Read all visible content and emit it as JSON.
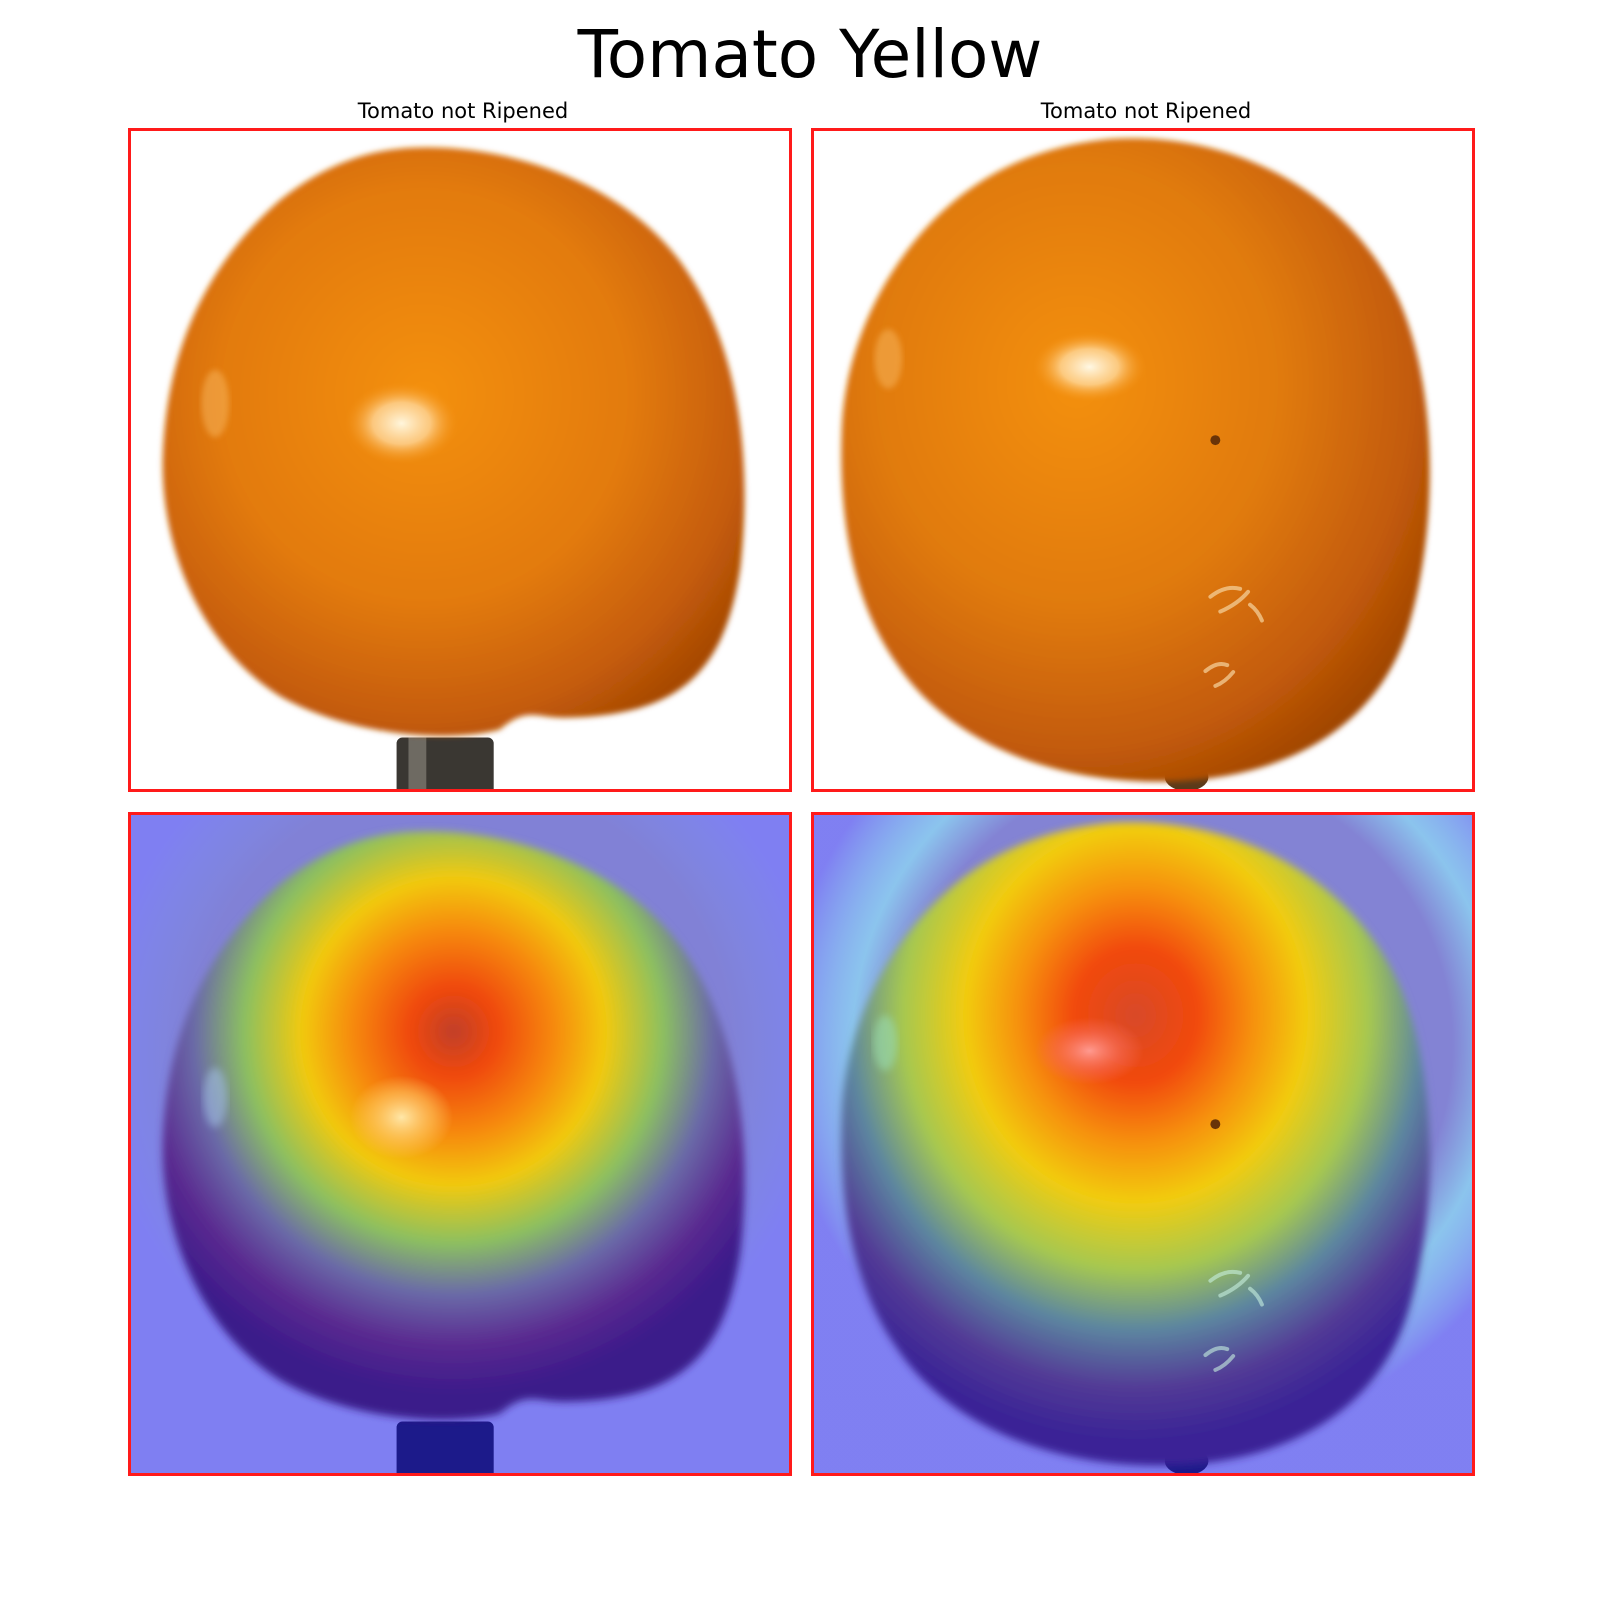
{
  "figure": {
    "title": "Tomato Yellow",
    "columns": [
      {
        "label": "Tomato not Ripened",
        "photo": "ripening-tomato-photo-left",
        "heatmap": "saliency-heatmap-left"
      },
      {
        "label": "Tomato not Ripened",
        "photo": "ripening-tomato-photo-right",
        "heatmap": "saliency-heatmap-right"
      }
    ]
  },
  "colors": {
    "panel_border": "#ff1a1a",
    "tomato_orange": "#e8820e",
    "heatmap_background": "#8080e8",
    "heatmap_hot": "#f04808"
  }
}
